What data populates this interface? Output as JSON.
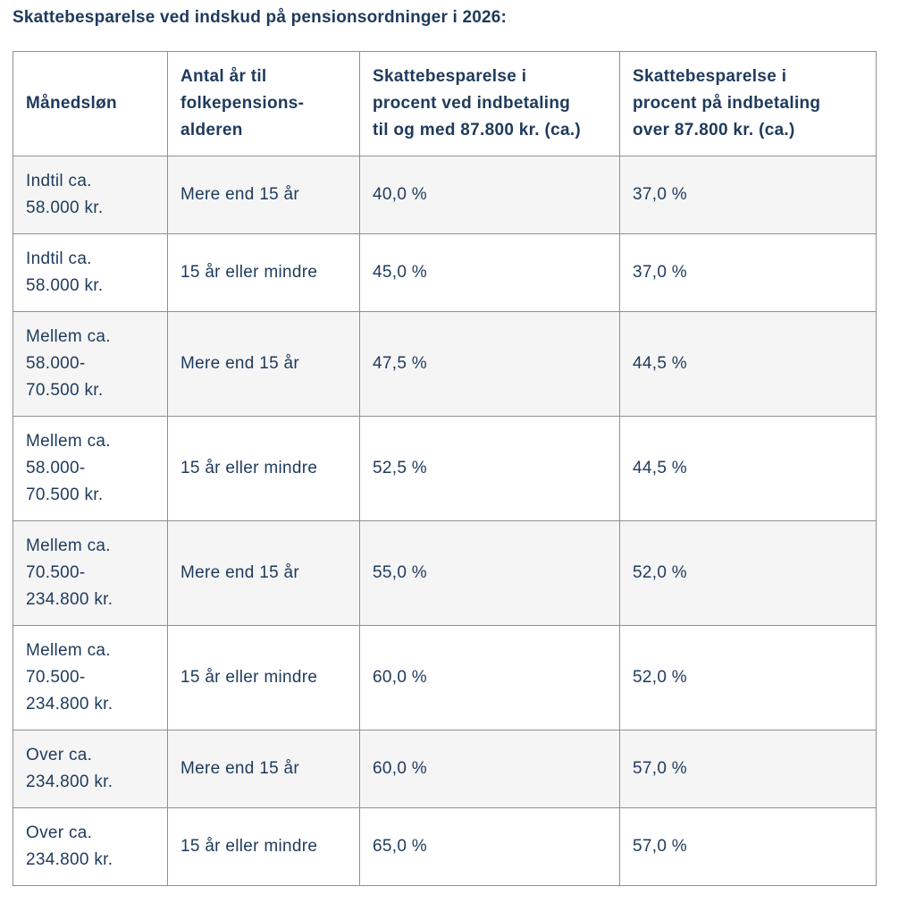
{
  "page": {
    "title": "Skattebesparelse ved indskud på pensionsordninger i 2026:"
  },
  "colors": {
    "text_navy": "#1e3a5c",
    "row_alt_background": "#f5f5f5",
    "border": "#8d9093",
    "background": "#ffffff"
  },
  "table": {
    "columns": [
      "Månedsløn",
      "Antal år til\nfolkepensions-\nalderen",
      "Skattebesparelse i\nprocent ved indbetaling\ntil og med 87.800 kr. (ca.)",
      "Skattebesparelse i\nprocent på indbetaling\nover 87.800 kr. (ca.)"
    ],
    "rows": [
      {
        "cells": [
          "Indtil ca.\n58.000 kr.",
          "Mere end 15 år",
          "40,0 %",
          "37,0 %"
        ]
      },
      {
        "cells": [
          "Indtil ca.\n58.000 kr.",
          "15 år eller mindre",
          "45,0 %",
          "37,0 %"
        ]
      },
      {
        "cells": [
          "Mellem ca.\n58.000-\n70.500 kr.",
          "Mere end 15 år",
          "47,5 %",
          "44,5 %"
        ]
      },
      {
        "cells": [
          "Mellem ca.\n58.000-\n70.500 kr.",
          "15 år eller mindre",
          "52,5 %",
          "44,5 %"
        ]
      },
      {
        "cells": [
          "Mellem ca.\n70.500-\n234.800 kr.",
          "Mere end 15 år",
          "55,0 %",
          "52,0 %"
        ]
      },
      {
        "cells": [
          "Mellem ca.\n70.500-\n234.800 kr.",
          "15 år eller mindre",
          "60,0 %",
          "52,0 %"
        ]
      },
      {
        "cells": [
          "Over ca.\n234.800 kr.",
          "Mere end 15 år",
          "60,0 %",
          "57,0 %"
        ]
      },
      {
        "cells": [
          "Over ca.\n234.800 kr.",
          "15 år eller mindre",
          "65,0 %",
          "57,0 %"
        ]
      }
    ]
  }
}
